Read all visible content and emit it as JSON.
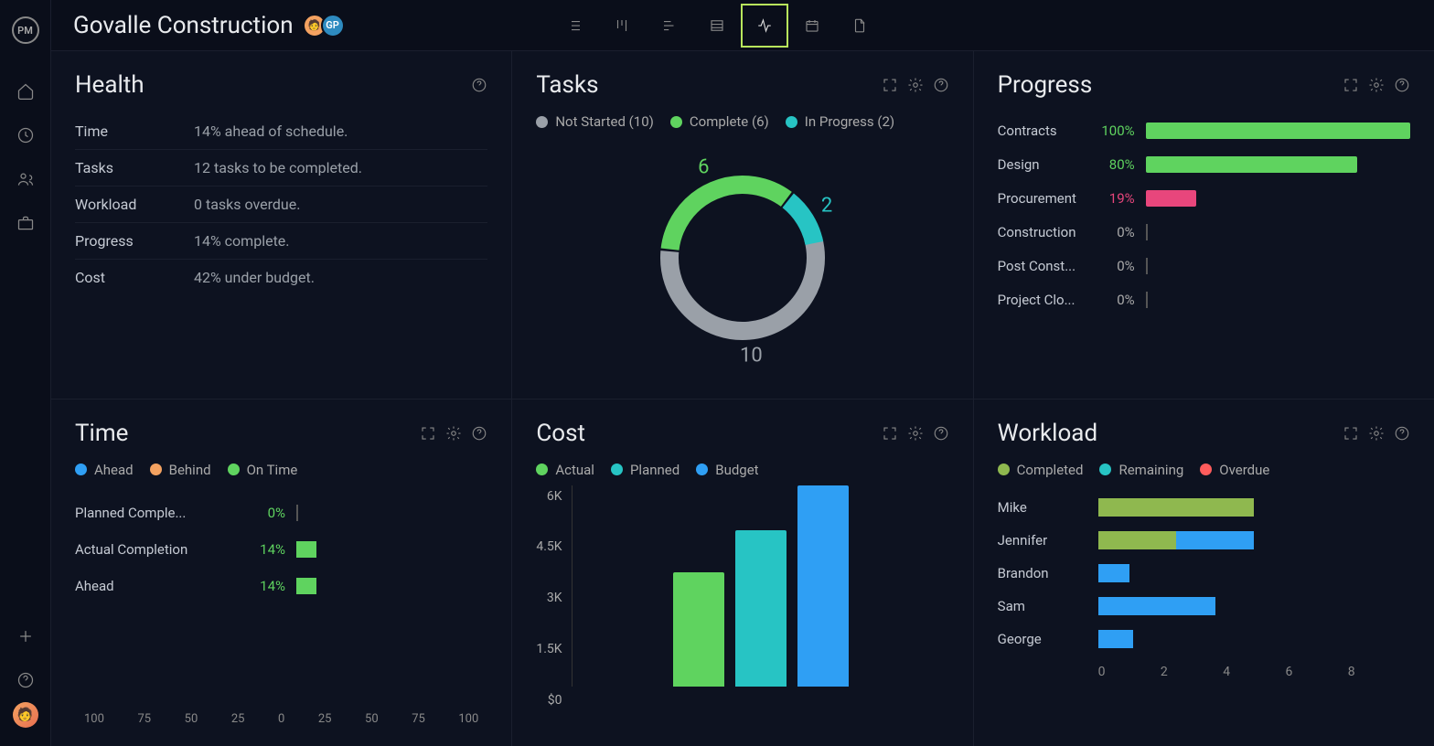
{
  "app": {
    "logo_text": "PM",
    "project_title": "Govalle Construction"
  },
  "avatars": [
    {
      "text": "🧑",
      "bg": "#f4a261"
    },
    {
      "text": "GP",
      "bg": "#2e8bc0"
    }
  ],
  "sidebar_icons": [
    "home",
    "clock",
    "users",
    "briefcase"
  ],
  "sidebar_bottom": [
    "plus",
    "help"
  ],
  "view_tabs": [
    "list",
    "board",
    "gantt",
    "table",
    "pulse",
    "calendar",
    "file"
  ],
  "active_view_index": 4,
  "colors": {
    "green": "#5fd35f",
    "teal": "#27c4c4",
    "grey": "#9aa0a8",
    "blue": "#2f9ff4",
    "pink": "#e8467c",
    "olive": "#8fb84f",
    "orange": "#f4a261",
    "red": "#ff5c5c"
  },
  "health": {
    "title": "Health",
    "rows": [
      {
        "label": "Time",
        "value": "14% ahead of schedule."
      },
      {
        "label": "Tasks",
        "value": "12 tasks to be completed."
      },
      {
        "label": "Workload",
        "value": "0 tasks overdue."
      },
      {
        "label": "Progress",
        "value": "14% complete."
      },
      {
        "label": "Cost",
        "value": "42% under budget."
      }
    ]
  },
  "tasks": {
    "title": "Tasks",
    "legend": [
      {
        "label": "Not Started (10)",
        "color": "#9aa0a8",
        "value": 10
      },
      {
        "label": "Complete (6)",
        "color": "#5fd35f",
        "value": 6
      },
      {
        "label": "In Progress (2)",
        "color": "#27c4c4",
        "value": 2
      }
    ],
    "donut": {
      "total": 18,
      "segments": [
        {
          "value": 10,
          "color": "#9aa0a8",
          "label": "10",
          "label_color": "#9aa0a8"
        },
        {
          "value": 6,
          "color": "#5fd35f",
          "label": "6",
          "label_color": "#5fd35f"
        },
        {
          "value": 2,
          "color": "#27c4c4",
          "label": "2",
          "label_color": "#27c4c4"
        }
      ],
      "stroke_width": 20,
      "radius": 80,
      "start_angle_deg": -15
    }
  },
  "progress": {
    "title": "Progress",
    "rows": [
      {
        "name": "Contracts",
        "pct": 100,
        "color": "#5fd35f"
      },
      {
        "name": "Design",
        "pct": 80,
        "color": "#5fd35f"
      },
      {
        "name": "Procurement",
        "pct": 19,
        "color": "#e8467c"
      },
      {
        "name": "Construction",
        "pct": 0,
        "color": "#555"
      },
      {
        "name": "Post Const...",
        "pct": 0,
        "color": "#555"
      },
      {
        "name": "Project Clo...",
        "pct": 0,
        "color": "#555"
      }
    ]
  },
  "time": {
    "title": "Time",
    "legend": [
      {
        "label": "Ahead",
        "color": "#2f9ff4"
      },
      {
        "label": "Behind",
        "color": "#f4a261"
      },
      {
        "label": "On Time",
        "color": "#5fd35f"
      }
    ],
    "rows": [
      {
        "name": "Planned Comple...",
        "pct": 0,
        "color": "#5fd35f"
      },
      {
        "name": "Actual Completion",
        "pct": 14,
        "color": "#5fd35f"
      },
      {
        "name": "Ahead",
        "pct": 14,
        "color": "#5fd35f"
      }
    ],
    "axis": [
      "100",
      "75",
      "50",
      "25",
      "0",
      "25",
      "50",
      "75",
      "100"
    ]
  },
  "cost": {
    "title": "Cost",
    "legend": [
      {
        "label": "Actual",
        "color": "#5fd35f"
      },
      {
        "label": "Planned",
        "color": "#27c4c4"
      },
      {
        "label": "Budget",
        "color": "#2f9ff4"
      }
    ],
    "yaxis": [
      "6K",
      "4.5K",
      "3K",
      "1.5K",
      "$0"
    ],
    "ymax": 6000,
    "bars": [
      {
        "value": 3400,
        "color": "#5fd35f"
      },
      {
        "value": 4650,
        "color": "#27c4c4"
      },
      {
        "value": 6000,
        "color": "#2f9ff4"
      }
    ]
  },
  "workload": {
    "title": "Workload",
    "legend": [
      {
        "label": "Completed",
        "color": "#8fb84f"
      },
      {
        "label": "Remaining",
        "color": "#27c4c4"
      },
      {
        "label": "Overdue",
        "color": "#ff5c5c"
      }
    ],
    "max": 8,
    "axis": [
      "0",
      "2",
      "4",
      "6",
      "8"
    ],
    "rows": [
      {
        "name": "Mike",
        "segments": [
          {
            "v": 4,
            "c": "#8fb84f"
          }
        ]
      },
      {
        "name": "Jennifer",
        "segments": [
          {
            "v": 2,
            "c": "#8fb84f"
          },
          {
            "v": 2,
            "c": "#2f9ff4"
          }
        ]
      },
      {
        "name": "Brandon",
        "segments": [
          {
            "v": 0.8,
            "c": "#2f9ff4"
          }
        ]
      },
      {
        "name": "Sam",
        "segments": [
          {
            "v": 3,
            "c": "#2f9ff4"
          }
        ]
      },
      {
        "name": "George",
        "segments": [
          {
            "v": 0.9,
            "c": "#2f9ff4"
          }
        ]
      }
    ]
  }
}
